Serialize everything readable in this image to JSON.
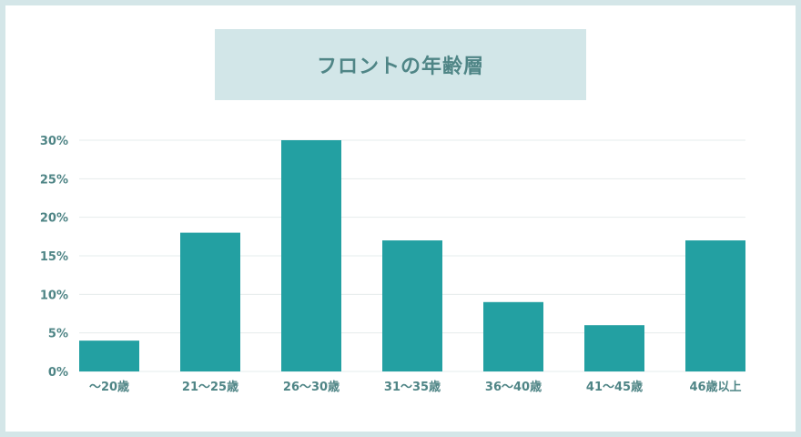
{
  "chart_data": {
    "type": "bar",
    "title": "フロントの年齢層",
    "categories": [
      "〜20歳",
      "21〜25歳",
      "26〜30歳",
      "31〜35歳",
      "36〜40歳",
      "41〜45歳",
      "46歳以上"
    ],
    "values": [
      4,
      18,
      30,
      17,
      9,
      6,
      17
    ],
    "ylim": [
      0,
      30
    ],
    "yticks": [
      "0%",
      "5%",
      "10%",
      "15%",
      "20%",
      "25%",
      "30%"
    ],
    "ytick_values": [
      0,
      5,
      10,
      15,
      20,
      25,
      30
    ],
    "grid": true,
    "legend": "none",
    "colors": {
      "bar": "#23a0a2",
      "grid": "#e6ecec",
      "text": "#4f8586",
      "title_bg": "#d2e6e8"
    }
  }
}
